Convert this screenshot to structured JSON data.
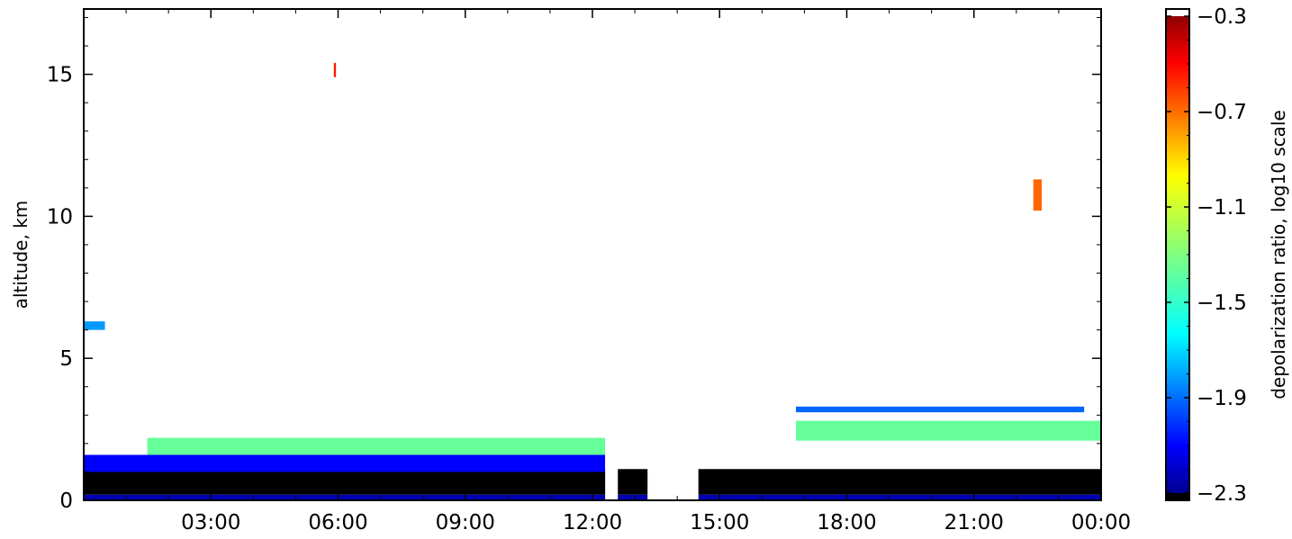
{
  "chart_data": {
    "type": "heatmap",
    "title": "",
    "xlabel": "",
    "ylabel": "altitude, km",
    "x_tick_labels": [
      "03:00",
      "06:00",
      "09:00",
      "12:00",
      "15:00",
      "18:00",
      "21:00",
      "00:00"
    ],
    "x_tick_hours": [
      3,
      6,
      9,
      12,
      15,
      18,
      21,
      24
    ],
    "xlim_hours": [
      0,
      24
    ],
    "y_ticks": [
      0,
      5,
      10,
      15
    ],
    "y_tick_labels": [
      "0",
      "5",
      "10",
      "15"
    ],
    "ylim": [
      0,
      17.3
    ],
    "colorbar": {
      "label": "depolarization ratio, log10 scale",
      "ticks": [
        -0.3,
        -0.7,
        -1.1,
        -1.5,
        -1.9,
        -2.3
      ],
      "tick_labels": [
        "−0.3",
        "−0.7",
        "−1.1",
        "−1.5",
        "−1.9",
        "−2.3"
      ],
      "range": [
        -2.3,
        -0.3
      ],
      "colormap": "jet",
      "under_color": "#000000",
      "over_color": "#ffffff"
    },
    "data_gaps_hours": [
      [
        12.3,
        12.6
      ],
      [
        13.3,
        14.5
      ]
    ],
    "layers": [
      {
        "name": "surface layer",
        "t": [
          0,
          24
        ],
        "z": [
          0,
          0.2
        ],
        "value": -2.2
      },
      {
        "name": "boundary layer",
        "t": [
          0,
          24
        ],
        "z": [
          0.2,
          1.1
        ],
        "value": -2.4
      },
      {
        "name": "aerosol layer",
        "t": [
          0,
          12.3
        ],
        "z": [
          1.0,
          1.6
        ],
        "value": -2.05
      },
      {
        "name": "layer top",
        "t": [
          1.5,
          12.3
        ],
        "z": [
          1.6,
          2.2
        ],
        "value": -1.35
      },
      {
        "name": "elevated layer",
        "t": [
          16.8,
          24
        ],
        "z": [
          2.1,
          2.8
        ],
        "value": -1.35
      },
      {
        "name": "upper thin layer",
        "t": [
          16.8,
          23.6
        ],
        "z": [
          3.1,
          3.3
        ],
        "value": -1.85
      },
      {
        "name": "cirrus 1",
        "t": [
          5.9,
          5.95
        ],
        "z": [
          14.9,
          15.4
        ],
        "value": -0.6
      },
      {
        "name": "cirrus 2",
        "t": [
          22.4,
          22.6
        ],
        "z": [
          10.2,
          11.3
        ],
        "value": -0.75
      },
      {
        "name": "early cloud",
        "t": [
          0,
          0.5
        ],
        "z": [
          6.0,
          6.3
        ],
        "value": -1.75
      }
    ]
  }
}
